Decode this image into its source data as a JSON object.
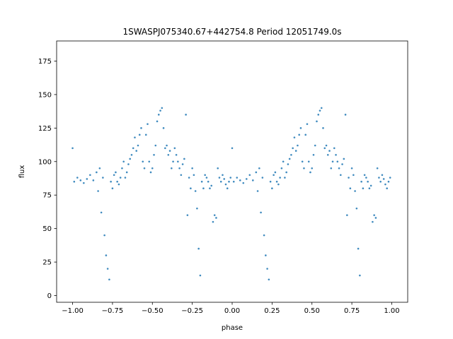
{
  "chart_data": {
    "type": "scatter",
    "title": "1SWASPJ075340.67+442754.8 Period 12051749.0s",
    "xlabel": "phase",
    "ylabel": "flux",
    "xlim": [
      -1.1,
      1.1
    ],
    "ylim": [
      -5,
      190
    ],
    "x_ticks": [
      -1.0,
      -0.75,
      -0.5,
      -0.25,
      0.0,
      0.25,
      0.5,
      0.75,
      1.0
    ],
    "x_tick_labels": [
      "−1.00",
      "−0.75",
      "−0.50",
      "−0.25",
      "0.00",
      "0.25",
      "0.50",
      "0.75",
      "1.00"
    ],
    "y_ticks": [
      0,
      25,
      50,
      75,
      100,
      125,
      150,
      175
    ],
    "y_tick_labels": [
      "0",
      "25",
      "50",
      "75",
      "100",
      "125",
      "150",
      "175"
    ],
    "grid": false,
    "legend": "none",
    "marker_color": "#1f77b4",
    "series": [
      {
        "points": [
          [
            -1.0,
            110
          ],
          [
            -0.99,
            85
          ],
          [
            -0.97,
            88
          ],
          [
            -0.95,
            86
          ],
          [
            -0.93,
            84
          ],
          [
            -0.91,
            87
          ],
          [
            -0.89,
            90
          ],
          [
            -0.87,
            86
          ],
          [
            -0.85,
            92
          ],
          [
            -0.84,
            78
          ],
          [
            -0.83,
            95
          ],
          [
            -0.82,
            62
          ],
          [
            -0.81,
            88
          ],
          [
            -0.8,
            45
          ],
          [
            -0.79,
            30
          ],
          [
            -0.78,
            20
          ],
          [
            -0.77,
            12
          ],
          [
            -0.76,
            85
          ],
          [
            -0.75,
            80
          ],
          [
            -0.74,
            90
          ],
          [
            -0.73,
            92
          ],
          [
            -0.72,
            85
          ],
          [
            -0.71,
            83
          ],
          [
            -0.7,
            88
          ],
          [
            -0.69,
            95
          ],
          [
            -0.68,
            100
          ],
          [
            -0.67,
            88
          ],
          [
            -0.66,
            92
          ],
          [
            -0.65,
            98
          ],
          [
            -0.64,
            102
          ],
          [
            -0.63,
            105
          ],
          [
            -0.62,
            110
          ],
          [
            -0.61,
            118
          ],
          [
            -0.6,
            108
          ],
          [
            -0.59,
            112
          ],
          [
            -0.58,
            120
          ],
          [
            -0.57,
            125
          ],
          [
            -0.56,
            100
          ],
          [
            -0.55,
            95
          ],
          [
            -0.54,
            120
          ],
          [
            -0.53,
            128
          ],
          [
            -0.52,
            100
          ],
          [
            -0.51,
            92
          ],
          [
            -0.5,
            95
          ],
          [
            -0.49,
            105
          ],
          [
            -0.48,
            112
          ],
          [
            -0.47,
            130
          ],
          [
            -0.46,
            135
          ],
          [
            -0.45,
            138
          ],
          [
            -0.44,
            140
          ],
          [
            -0.43,
            125
          ],
          [
            -0.42,
            110
          ],
          [
            -0.41,
            112
          ],
          [
            -0.4,
            105
          ],
          [
            -0.39,
            108
          ],
          [
            -0.38,
            95
          ],
          [
            -0.37,
            100
          ],
          [
            -0.36,
            110
          ],
          [
            -0.35,
            105
          ],
          [
            -0.34,
            100
          ],
          [
            -0.33,
            95
          ],
          [
            -0.32,
            90
          ],
          [
            -0.31,
            98
          ],
          [
            -0.3,
            102
          ],
          [
            -0.29,
            135
          ],
          [
            -0.28,
            60
          ],
          [
            -0.27,
            88
          ],
          [
            -0.26,
            80
          ],
          [
            -0.25,
            95
          ],
          [
            -0.24,
            90
          ],
          [
            -0.23,
            78
          ],
          [
            -0.22,
            65
          ],
          [
            -0.21,
            35
          ],
          [
            -0.2,
            15
          ],
          [
            -0.19,
            85
          ],
          [
            -0.18,
            80
          ],
          [
            -0.17,
            90
          ],
          [
            -0.16,
            88
          ],
          [
            -0.15,
            85
          ],
          [
            -0.14,
            80
          ],
          [
            -0.13,
            82
          ],
          [
            -0.12,
            55
          ],
          [
            -0.11,
            60
          ],
          [
            -0.1,
            58
          ],
          [
            -0.09,
            95
          ],
          [
            -0.08,
            88
          ],
          [
            -0.07,
            85
          ],
          [
            -0.06,
            90
          ],
          [
            -0.05,
            87
          ],
          [
            -0.04,
            83
          ],
          [
            -0.03,
            80
          ],
          [
            -0.02,
            85
          ],
          [
            -0.01,
            88
          ]
        ]
      }
    ]
  }
}
